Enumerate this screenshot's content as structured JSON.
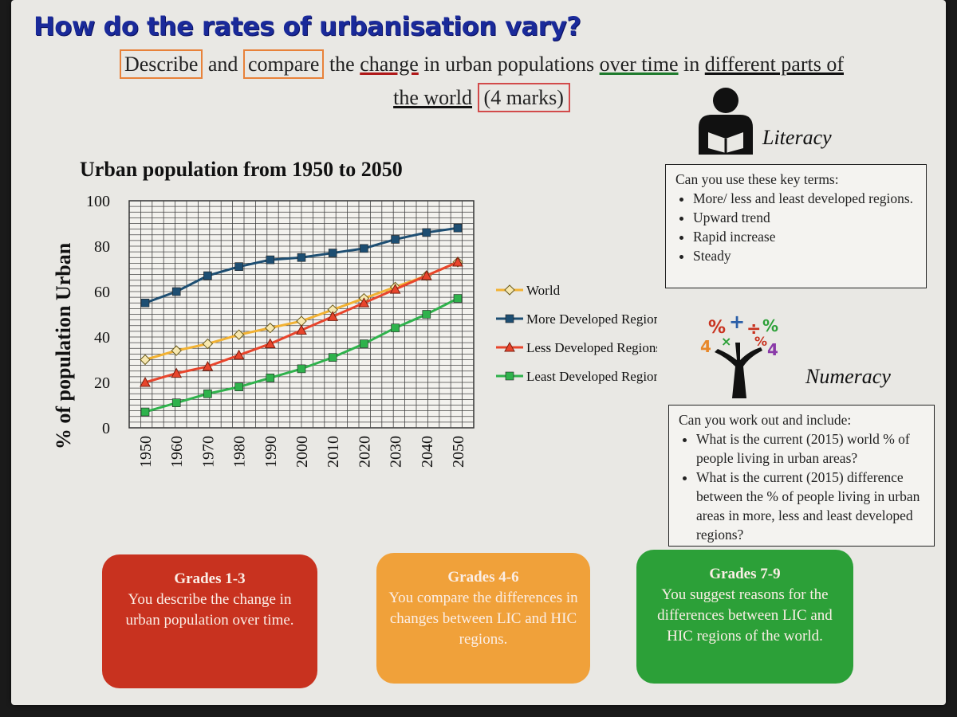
{
  "slide": {
    "title": "How do the rates of urbanisation vary?",
    "task": {
      "w1": "Describe",
      "w2": "and",
      "w3": "compare",
      "w4": "the",
      "w5": "change",
      "w6": "in urban populations",
      "w7": "over time",
      "w8": "in",
      "w9": "different parts of",
      "w10": "the world",
      "marks": "(4 marks)"
    }
  },
  "literacy": {
    "label": "Literacy",
    "intro": "Can you use these key terms:",
    "items": [
      "More/ less and least developed regions.",
      "Upward trend",
      "Rapid increase",
      "Steady"
    ]
  },
  "numeracy": {
    "label": "Numeracy",
    "intro": "Can you work out and include:",
    "items": [
      "What is the current (2015) world % of people living in urban areas?",
      "What is the current (2015) difference between the % of people living in urban areas in more, less and least developed regions?"
    ]
  },
  "grades": [
    {
      "title": "Grades 1-3",
      "text": "You describe the change in urban population over time.",
      "color": "#c8321f"
    },
    {
      "title": "Grades 4-6",
      "text": "You compare the differences in changes between LIC and HIC regions.",
      "color": "#f0a13a"
    },
    {
      "title": "Grades 7-9",
      "text": "You suggest reasons for the differences between LIC and HIC regions of the world.",
      "color": "#2ca038"
    }
  ],
  "chart_data": {
    "type": "line",
    "title": "Urban population from 1950 to 2050",
    "xlabel": "",
    "ylabel": "% of population Urban",
    "x": [
      1950,
      1960,
      1970,
      1980,
      1990,
      2000,
      2010,
      2020,
      2030,
      2040,
      2050
    ],
    "ylim": [
      0,
      100
    ],
    "yticks": [
      0,
      20,
      40,
      60,
      80,
      100
    ],
    "grid": true,
    "legend": "right",
    "series": [
      {
        "name": "World",
        "color": "#f2b233",
        "marker": "diamond",
        "values": [
          30,
          34,
          37,
          41,
          44,
          47,
          52,
          57,
          62,
          67,
          73
        ]
      },
      {
        "name": "More Developed Regions",
        "color": "#1d4e72",
        "marker": "square",
        "values": [
          55,
          60,
          67,
          71,
          74,
          75,
          77,
          79,
          83,
          86,
          88
        ]
      },
      {
        "name": "Less Developed Regions*",
        "color": "#e8452c",
        "marker": "triangle",
        "values": [
          20,
          24,
          27,
          32,
          37,
          43,
          49,
          55,
          61,
          67,
          73
        ]
      },
      {
        "name": "Least Developed Regions",
        "color": "#2fb24c",
        "marker": "square",
        "values": [
          7,
          11,
          15,
          18,
          22,
          26,
          31,
          37,
          44,
          50,
          57
        ]
      }
    ]
  }
}
